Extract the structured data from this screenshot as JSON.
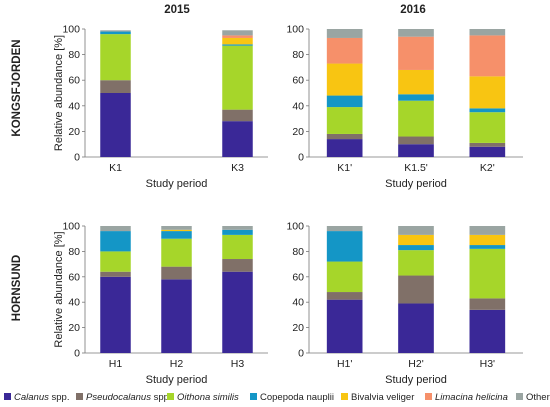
{
  "rows": [
    {
      "label": "KONGSFJORDEN"
    },
    {
      "label": "HORNSUND"
    }
  ],
  "columns": [
    {
      "label": "2015"
    },
    {
      "label": "2016"
    }
  ],
  "legend": [
    {
      "name": "Calanus",
      "suffix": " spp.",
      "italic": true,
      "color": "#3a2897"
    },
    {
      "name": "Pseudocalanus",
      "suffix": " spp.",
      "italic": true,
      "color": "#807068"
    },
    {
      "name": "Oithona  similis",
      "suffix": "",
      "italic": true,
      "color": "#a6d62a"
    },
    {
      "name": "Copepoda nauplii",
      "suffix": "",
      "italic": false,
      "color": "#1496c6"
    },
    {
      "name": "Bivalvia veliger",
      "suffix": "",
      "italic": false,
      "color": "#f8c512"
    },
    {
      "name": "Limacina helicina",
      "suffix": "",
      "italic": true,
      "color": "#f6906a"
    },
    {
      "name": "Others",
      "suffix": "",
      "italic": false,
      "color": "#9aa5a2"
    }
  ],
  "chart_data": [
    {
      "type": "bar",
      "stacked": true,
      "row": "KONGSFJORDEN",
      "column": "2015",
      "categories": [
        "K1",
        "",
        "K3"
      ],
      "xlabel": "Study period",
      "ylabel": "Relative abundance [%]",
      "ylim": [
        0,
        100
      ],
      "yticks": [
        0,
        20,
        40,
        60,
        80,
        100
      ],
      "series": [
        {
          "name": "Calanus spp.",
          "values": [
            50,
            null,
            28
          ]
        },
        {
          "name": "Pseudocalanus spp.",
          "values": [
            10,
            null,
            9
          ]
        },
        {
          "name": "Oithona similis",
          "values": [
            36,
            null,
            50
          ]
        },
        {
          "name": "Copepoda nauplii",
          "values": [
            2,
            null,
            1
          ]
        },
        {
          "name": "Bivalvia veliger",
          "values": [
            0,
            null,
            5
          ]
        },
        {
          "name": "Limacina helicina",
          "values": [
            0,
            null,
            2
          ]
        },
        {
          "name": "Others",
          "values": [
            1,
            null,
            4
          ]
        }
      ]
    },
    {
      "type": "bar",
      "stacked": true,
      "row": "KONGSFJORDEN",
      "column": "2016",
      "categories": [
        "K1'",
        "K1.5'",
        "K2'"
      ],
      "xlabel": "Study period",
      "ylabel": "",
      "ylim": [
        0,
        100
      ],
      "yticks": [
        0,
        20,
        40,
        60,
        80,
        100
      ],
      "series": [
        {
          "name": "Calanus spp.",
          "values": [
            14,
            10,
            8
          ]
        },
        {
          "name": "Pseudocalanus spp.",
          "values": [
            4,
            6,
            3
          ]
        },
        {
          "name": "Oithona similis",
          "values": [
            21,
            28,
            24
          ]
        },
        {
          "name": "Copepoda nauplii",
          "values": [
            9,
            5,
            3
          ]
        },
        {
          "name": "Bivalvia veliger",
          "values": [
            25,
            19,
            25
          ]
        },
        {
          "name": "Limacina helicina",
          "values": [
            20,
            26,
            32
          ]
        },
        {
          "name": "Others",
          "values": [
            7,
            6,
            5
          ]
        }
      ]
    },
    {
      "type": "bar",
      "stacked": true,
      "row": "HORNSUND",
      "column": "2015",
      "categories": [
        "H1",
        "H2",
        "H3"
      ],
      "xlabel": "Study period",
      "ylabel": "Relative abundance [%]",
      "ylim": [
        0,
        100
      ],
      "yticks": [
        0,
        20,
        40,
        60,
        80,
        100
      ],
      "series": [
        {
          "name": "Calanus spp.",
          "values": [
            60,
            58,
            64
          ]
        },
        {
          "name": "Pseudocalanus spp.",
          "values": [
            4,
            10,
            10
          ]
        },
        {
          "name": "Oithona similis",
          "values": [
            16,
            22,
            19
          ]
        },
        {
          "name": "Copepoda nauplii",
          "values": [
            16,
            6,
            4
          ]
        },
        {
          "name": "Bivalvia veliger",
          "values": [
            0,
            1,
            0
          ]
        },
        {
          "name": "Limacina helicina",
          "values": [
            0,
            0,
            0
          ]
        },
        {
          "name": "Others",
          "values": [
            4,
            3,
            3
          ]
        }
      ]
    },
    {
      "type": "bar",
      "stacked": true,
      "row": "HORNSUND",
      "column": "2016",
      "categories": [
        "H1'",
        "H2'",
        "H3'"
      ],
      "xlabel": "Study period",
      "ylabel": "",
      "ylim": [
        0,
        100
      ],
      "yticks": [
        0,
        20,
        40,
        60,
        80,
        100
      ],
      "series": [
        {
          "name": "Calanus spp.",
          "values": [
            42,
            39,
            34
          ]
        },
        {
          "name": "Pseudocalanus spp.",
          "values": [
            6,
            22,
            9
          ]
        },
        {
          "name": "Oithona similis",
          "values": [
            24,
            20,
            39
          ]
        },
        {
          "name": "Copepoda nauplii",
          "values": [
            24,
            4,
            3
          ]
        },
        {
          "name": "Bivalvia veliger",
          "values": [
            0,
            8,
            8
          ]
        },
        {
          "name": "Limacina helicina",
          "values": [
            0,
            0,
            0
          ]
        },
        {
          "name": "Others",
          "values": [
            4,
            7,
            7
          ]
        }
      ]
    }
  ]
}
